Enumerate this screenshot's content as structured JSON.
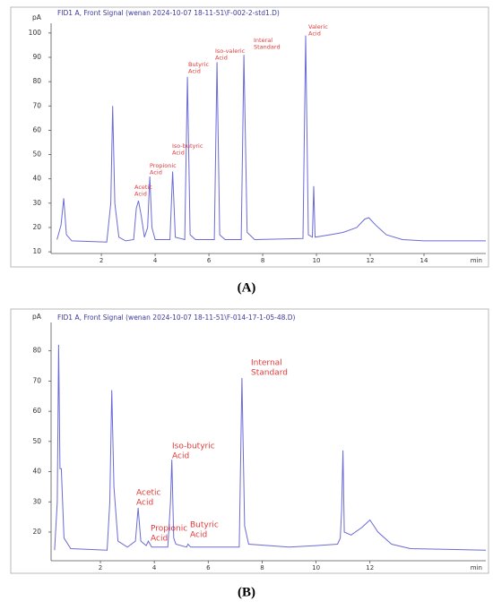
{
  "chart_data": [
    {
      "type": "line",
      "title": "FID1 A, Front Signal (wenan 2024-10-07 18-11-51\\F-002-2-std1.D)",
      "y_label": "pA",
      "x_label": "min",
      "caption": "(A)",
      "color": "#6b6bd6",
      "annotation_color": "#e03a3a",
      "xlim": [
        0.13,
        16.3
      ],
      "ylim": [
        9.3,
        104
      ],
      "xticks": [
        2,
        4,
        6,
        8,
        10,
        12,
        14
      ],
      "yticks": [
        10,
        20,
        30,
        40,
        50,
        60,
        70,
        80,
        90,
        100
      ],
      "annotations": [
        [
          "Acetic",
          "Acid"
        ],
        [
          "Propionic",
          "Acid"
        ],
        [
          "Iso-butyric",
          "Acid"
        ],
        [
          "Butyric",
          "Acid"
        ],
        [
          "Iso-valeric",
          "Acid"
        ],
        [
          "Interal",
          "Standard"
        ],
        [
          "Valeric",
          "Acid"
        ]
      ],
      "x": [
        0.35,
        0.5,
        0.6,
        0.7,
        0.9,
        2.2,
        2.35,
        2.42,
        2.5,
        2.65,
        2.9,
        3.2,
        3.3,
        3.38,
        3.48,
        3.6,
        3.72,
        3.8,
        3.88,
        4.0,
        4.55,
        4.65,
        4.75,
        5.1,
        5.2,
        5.3,
        5.5,
        6.2,
        6.3,
        6.4,
        6.6,
        7.2,
        7.3,
        7.42,
        7.7,
        9.5,
        9.6,
        9.7,
        9.85,
        9.9,
        9.95,
        10.5,
        11.0,
        11.5,
        11.8,
        11.95,
        12.2,
        12.6,
        13.2,
        14,
        16.3
      ],
      "values": [
        15,
        21,
        32,
        17,
        14.5,
        14,
        30,
        70,
        30,
        16,
        14.5,
        15,
        28,
        31,
        25,
        16,
        20,
        41,
        20,
        15,
        15,
        43,
        16,
        15,
        82,
        17,
        15,
        15,
        88,
        17,
        15,
        15,
        91,
        18,
        15,
        15.5,
        99,
        17,
        16,
        37,
        16,
        17,
        18,
        20,
        23.5,
        24,
        21,
        17,
        15,
        14.5,
        14.5
      ]
    },
    {
      "type": "line",
      "title": "FID1 A, Front Signal (wenan 2024-10-07 18-11-51\\F-014-17-1-05-48.D)",
      "y_label": "pA",
      "x_label": "min",
      "caption": "(B)",
      "color": "#6b6bd6",
      "annotation_color": "#e03a3a",
      "xlim": [
        0.17,
        16.3
      ],
      "ylim": [
        10.5,
        89.4
      ],
      "xticks": [
        2,
        4,
        6,
        8,
        10,
        12
      ],
      "yticks": [
        20,
        30,
        40,
        50,
        60,
        70,
        80
      ],
      "annotations": [
        [
          "Acetic",
          "Acid"
        ],
        [
          "Propionic",
          "Acid"
        ],
        [
          "Iso-butyric",
          "Acid"
        ],
        [
          "Butyric",
          "Acid"
        ],
        [
          "Internal",
          "Standard"
        ]
      ],
      "x": [
        0.3,
        0.4,
        0.45,
        0.5,
        0.55,
        0.65,
        0.9,
        2.25,
        2.35,
        2.42,
        2.5,
        2.65,
        3.0,
        3.3,
        3.4,
        3.5,
        3.7,
        3.78,
        3.9,
        4.5,
        4.6,
        4.65,
        4.72,
        4.8,
        5.2,
        5.25,
        5.35,
        7.15,
        7.25,
        7.35,
        7.5,
        9.0,
        10.0,
        10.8,
        10.9,
        10.95,
        11.0,
        11.05,
        11.3,
        11.7,
        12.0,
        12.3,
        12.8,
        13.5,
        16.3
      ],
      "values": [
        14,
        30,
        82,
        41,
        41,
        18,
        14.5,
        14,
        30,
        67,
        35,
        17,
        15,
        17,
        28,
        17,
        15.5,
        17,
        15,
        15,
        30,
        44,
        18,
        16,
        15,
        16,
        15,
        15,
        71,
        22,
        16,
        15,
        15.5,
        16,
        18,
        27,
        47,
        20,
        19,
        21.5,
        24,
        20,
        16,
        14.5,
        14
      ]
    }
  ]
}
